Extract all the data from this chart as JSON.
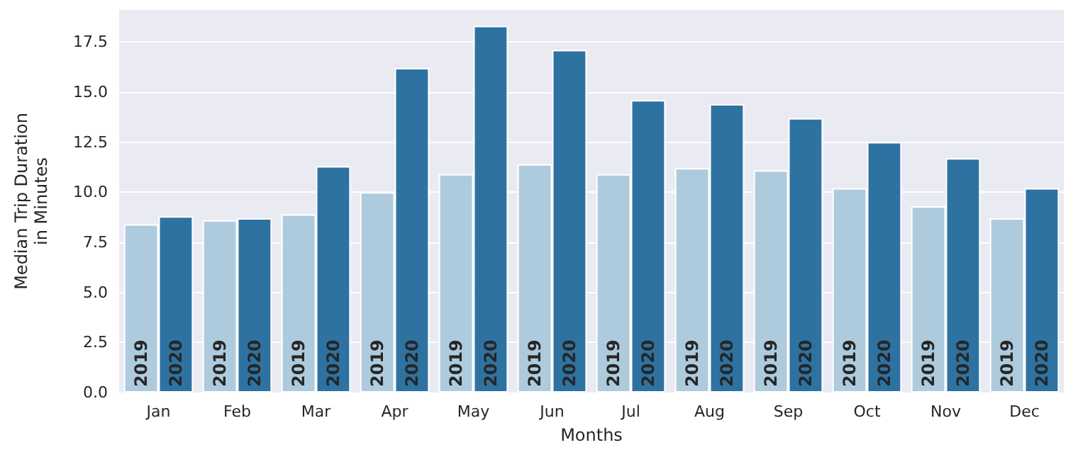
{
  "chart_data": {
    "type": "bar",
    "xlabel": "Months",
    "ylabel": "Median Trip Duration\nin Minutes",
    "categories": [
      "Jan",
      "Feb",
      "Mar",
      "Apr",
      "May",
      "Jun",
      "Jul",
      "Aug",
      "Sep",
      "Oct",
      "Nov",
      "Dec"
    ],
    "series": [
      {
        "name": "2019",
        "color": "#aecbdd",
        "values": [
          8.4,
          8.6,
          8.9,
          10.0,
          10.9,
          11.4,
          10.9,
          11.2,
          11.1,
          10.2,
          9.3,
          8.7
        ]
      },
      {
        "name": "2020",
        "color": "#2e72a2",
        "values": [
          8.8,
          8.7,
          11.3,
          16.2,
          18.3,
          17.1,
          14.6,
          14.4,
          13.7,
          12.5,
          11.7,
          10.2
        ]
      }
    ],
    "ylim": [
      0,
      19.1
    ],
    "yticks": [
      {
        "value": 0,
        "label": "0.0"
      },
      {
        "value": 2.5,
        "label": "2.5"
      },
      {
        "value": 5,
        "label": "5.0"
      },
      {
        "value": 7.5,
        "label": "7.5"
      },
      {
        "value": 10,
        "label": "10.0"
      },
      {
        "value": 12.5,
        "label": "12.5"
      },
      {
        "value": 15,
        "label": "15.0"
      },
      {
        "value": 17.5,
        "label": "17.5"
      }
    ],
    "grid": "y",
    "legend": false
  }
}
